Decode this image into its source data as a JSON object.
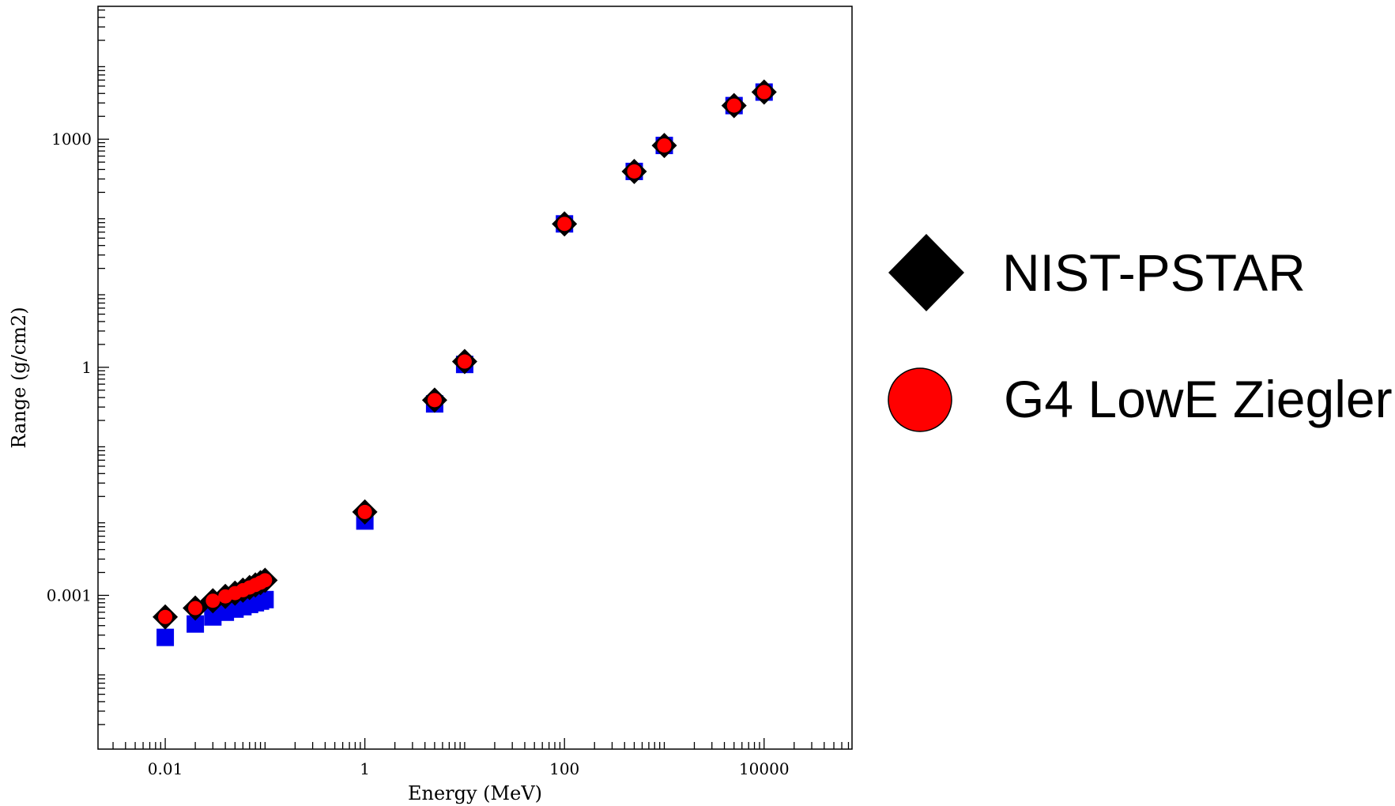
{
  "chart_data": {
    "type": "scatter",
    "title": "",
    "xlabel": "Energy (MeV)",
    "ylabel": "Range (g/cm2)",
    "xscale": "log",
    "yscale": "log",
    "xlim": [
      0.0021,
      8000
    ],
    "ylim": [
      6.75e-06,
      0.0
    ],
    "grid": false,
    "legend_position": "right",
    "x_ticks": [
      {
        "value": 0.01,
        "label": "0.01"
      },
      {
        "value": 1,
        "label": "1"
      },
      {
        "value": 100,
        "label": "100"
      },
      {
        "value": 10000,
        "label": "10000"
      }
    ],
    "y_ticks": [
      {
        "value": 0.001,
        "label": "0.001"
      },
      {
        "value": 1,
        "label": "1"
      },
      {
        "value": 1000,
        "label": "1000"
      }
    ],
    "series": [
      {
        "name": "NIST-PSTAR",
        "marker": "diamond",
        "color": "#000000",
        "x": [
          0.01,
          0.02,
          0.03,
          0.04,
          0.05,
          0.06,
          0.07,
          0.08,
          0.09,
          0.1,
          1,
          5,
          10,
          100,
          500,
          1000,
          5000,
          10000
        ],
        "y": [
          0.00052,
          0.00068,
          0.00085,
          0.00097,
          0.00107,
          0.00117,
          0.00127,
          0.00137,
          0.00147,
          0.00158,
          0.0125,
          0.37,
          1.19,
          77,
          377,
          828,
          2770,
          4170
        ]
      },
      {
        "name": "G4 LowE Ziegler",
        "marker": "circle",
        "color": "#ff0000",
        "x": [
          0.01,
          0.02,
          0.03,
          0.04,
          0.05,
          0.06,
          0.07,
          0.08,
          0.09,
          0.1,
          1,
          5,
          10,
          100,
          500,
          1000,
          5000,
          10000
        ],
        "y": [
          0.00052,
          0.00068,
          0.00085,
          0.00097,
          0.00107,
          0.00117,
          0.00127,
          0.00137,
          0.00147,
          0.00158,
          0.0125,
          0.37,
          1.19,
          77,
          377,
          828,
          2770,
          4170
        ]
      },
      {
        "marker": "square",
        "color": "#0000ee",
        "x": [
          0.01,
          0.02,
          0.03,
          0.04,
          0.05,
          0.06,
          0.07,
          0.08,
          0.09,
          0.1,
          1,
          5,
          10,
          100,
          500,
          1000,
          5000,
          10000
        ],
        "y": [
          0.00028,
          0.00042,
          0.00052,
          0.0006,
          0.00066,
          0.00071,
          0.00076,
          0.0008,
          0.00084,
          0.00088,
          0.0095,
          0.33,
          1.09,
          77,
          377,
          828,
          2770,
          4170
        ]
      }
    ]
  },
  "legend": [
    {
      "label": "NIST-PSTAR",
      "marker": "diamond",
      "color": "#000000"
    },
    {
      "label": "G4 LowE Ziegler",
      "marker": "circle",
      "color": "#ff0000"
    }
  ]
}
